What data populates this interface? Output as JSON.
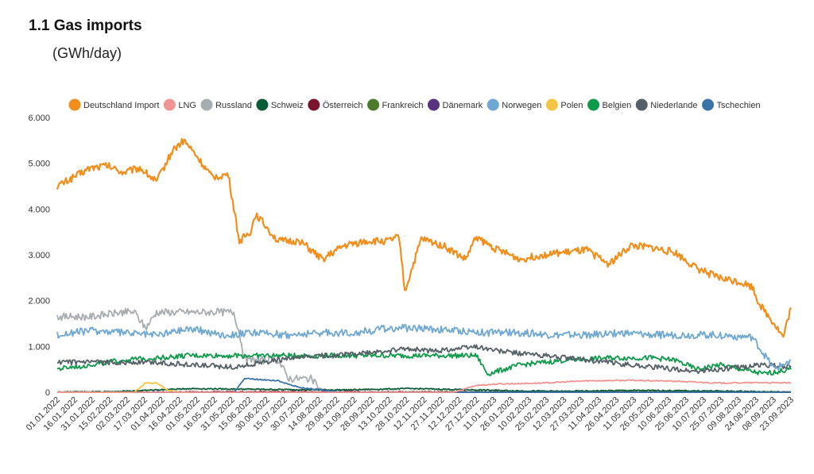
{
  "page": {
    "title": "1.1 Gas imports",
    "subtitle": "(GWh/day)"
  },
  "chart_data": {
    "type": "line",
    "title": "1.1 Gas imports",
    "subtitle": "(GWh/day)",
    "ylim": [
      0,
      6000
    ],
    "yticks": [
      "0",
      "1.000",
      "2.000",
      "3.000",
      "4.000",
      "5.000",
      "6.000"
    ],
    "x_tick_labels": [
      "01.01.2022",
      "16.01.2022",
      "31.01.2022",
      "15.02.2022",
      "02.03.2022",
      "17.03.2022",
      "01.04.2022",
      "16.04.2022",
      "01.05.2022",
      "16.05.2022",
      "31.05.2022",
      "15.06.2022",
      "30.06.2022",
      "15.07.2022",
      "30.07.2022",
      "14.08.2022",
      "29.08.2022",
      "13.09.2022",
      "28.09.2022",
      "13.10.2022",
      "28.10.2022",
      "12.11.2022",
      "27.11.2022",
      "12.12.2022",
      "27.12.2022",
      "11.01.2023",
      "26.01.2023",
      "10.02.2023",
      "25.02.2023",
      "12.03.2023",
      "27.03.2023",
      "11.04.2023",
      "26.04.2023",
      "11.05.2023",
      "26.05.2023",
      "10.06.2023",
      "25.06.2023",
      "10.07.2023",
      "25.07.2023",
      "09.08.2023",
      "24.08.2023",
      "08.09.2023",
      "23.09.2023"
    ],
    "grid": false,
    "legend_position": "top",
    "series": [
      {
        "name": "Deutschland Import",
        "color": "#f28e1c",
        "x": [
          0,
          15,
          30,
          45,
          60,
          75,
          90,
          105,
          115,
          125,
          140,
          155,
          165,
          175,
          180,
          190,
          200,
          220,
          240,
          260,
          280,
          300,
          310,
          315,
          330,
          350,
          370,
          380,
          385,
          400,
          420,
          440,
          460,
          480,
          500,
          520,
          540,
          560,
          580,
          600,
          620,
          630,
          635,
          640,
          650,
          658,
          665
        ],
        "y": [
          4500,
          4700,
          4900,
          4950,
          4800,
          4900,
          4600,
          5300,
          5500,
          5200,
          4700,
          4750,
          3300,
          3500,
          3900,
          3600,
          3300,
          3300,
          2900,
          3200,
          3300,
          3300,
          3400,
          2200,
          3350,
          3200,
          2900,
          3400,
          3300,
          3100,
          2900,
          3000,
          3050,
          3100,
          2800,
          3200,
          3150,
          3050,
          2700,
          2500,
          2400,
          2300,
          2000,
          1800,
          1500,
          1200,
          1850
        ]
      },
      {
        "name": "LNG",
        "color": "#f29494",
        "x": [
          0,
          360,
          380,
          400,
          440,
          480,
          520,
          560,
          600,
          640,
          665
        ],
        "y": [
          0,
          0,
          150,
          180,
          200,
          250,
          260,
          240,
          200,
          210,
          200
        ]
      },
      {
        "name": "Russland",
        "color": "#a8adb0",
        "x": [
          0,
          30,
          60,
          70,
          80,
          90,
          100,
          130,
          160,
          165,
          170,
          180,
          200,
          210,
          230,
          240,
          250
        ],
        "y": [
          1650,
          1650,
          1750,
          1750,
          1400,
          1750,
          1750,
          1750,
          1750,
          1300,
          700,
          700,
          700,
          300,
          300,
          0,
          0
        ]
      },
      {
        "name": "Schweiz",
        "color": "#0a5c38",
        "x": [
          0,
          60,
          90,
          120,
          200,
          260,
          320,
          380,
          420,
          460,
          520,
          580,
          620,
          665
        ],
        "y": [
          0,
          20,
          50,
          80,
          60,
          50,
          80,
          50,
          30,
          20,
          40,
          30,
          20,
          0
        ]
      },
      {
        "name": "Österreich",
        "color": "#7a1530",
        "x": [
          0,
          200,
          400,
          665
        ],
        "y": [
          0,
          10,
          5,
          0
        ]
      },
      {
        "name": "Frankreich",
        "color": "#4a7a2a",
        "x": [
          0,
          300,
          500,
          665
        ],
        "y": [
          0,
          0,
          10,
          0
        ]
      },
      {
        "name": "Dänemark",
        "color": "#5a3380",
        "x": [
          0,
          300,
          600,
          665
        ],
        "y": [
          0,
          0,
          0,
          0
        ]
      },
      {
        "name": "Norwegen",
        "color": "#6fa8d2",
        "x": [
          0,
          30,
          60,
          90,
          120,
          150,
          180,
          210,
          240,
          270,
          300,
          330,
          360,
          390,
          420,
          450,
          480,
          510,
          540,
          570,
          600,
          630,
          650,
          665
        ],
        "y": [
          1250,
          1350,
          1300,
          1250,
          1400,
          1250,
          1300,
          1250,
          1300,
          1300,
          1400,
          1400,
          1350,
          1300,
          1300,
          1250,
          1250,
          1300,
          1250,
          1250,
          1250,
          1200,
          500,
          700
        ]
      },
      {
        "name": "Polen",
        "color": "#f4c542",
        "x": [
          0,
          70,
          80,
          90,
          100,
          110,
          120
        ],
        "y": [
          0,
          0,
          200,
          200,
          50,
          0,
          0
        ]
      },
      {
        "name": "Belgien",
        "color": "#0e9a4a",
        "x": [
          0,
          30,
          60,
          90,
          120,
          160,
          200,
          240,
          280,
          320,
          360,
          380,
          390,
          420,
          460,
          500,
          540,
          560,
          580,
          600,
          620,
          640,
          665
        ],
        "y": [
          500,
          600,
          700,
          750,
          800,
          800,
          800,
          800,
          800,
          800,
          800,
          800,
          400,
          600,
          700,
          750,
          750,
          700,
          500,
          600,
          500,
          400,
          500
        ]
      },
      {
        "name": "Niederlande",
        "color": "#555f66",
        "x": [
          0,
          30,
          60,
          90,
          120,
          160,
          200,
          240,
          280,
          320,
          340,
          360,
          380,
          400,
          420,
          440,
          460,
          480,
          500,
          520,
          540,
          560,
          580,
          600,
          620,
          640,
          665
        ],
        "y": [
          650,
          650,
          650,
          650,
          600,
          550,
          700,
          800,
          850,
          950,
          900,
          950,
          1000,
          900,
          850,
          800,
          750,
          700,
          650,
          600,
          550,
          500,
          450,
          500,
          550,
          600,
          550
        ]
      },
      {
        "name": "Tschechien",
        "color": "#3b74a8",
        "x": [
          0,
          160,
          170,
          200,
          220,
          240,
          260,
          665
        ],
        "y": [
          0,
          0,
          300,
          250,
          100,
          50,
          0,
          0
        ]
      }
    ]
  }
}
